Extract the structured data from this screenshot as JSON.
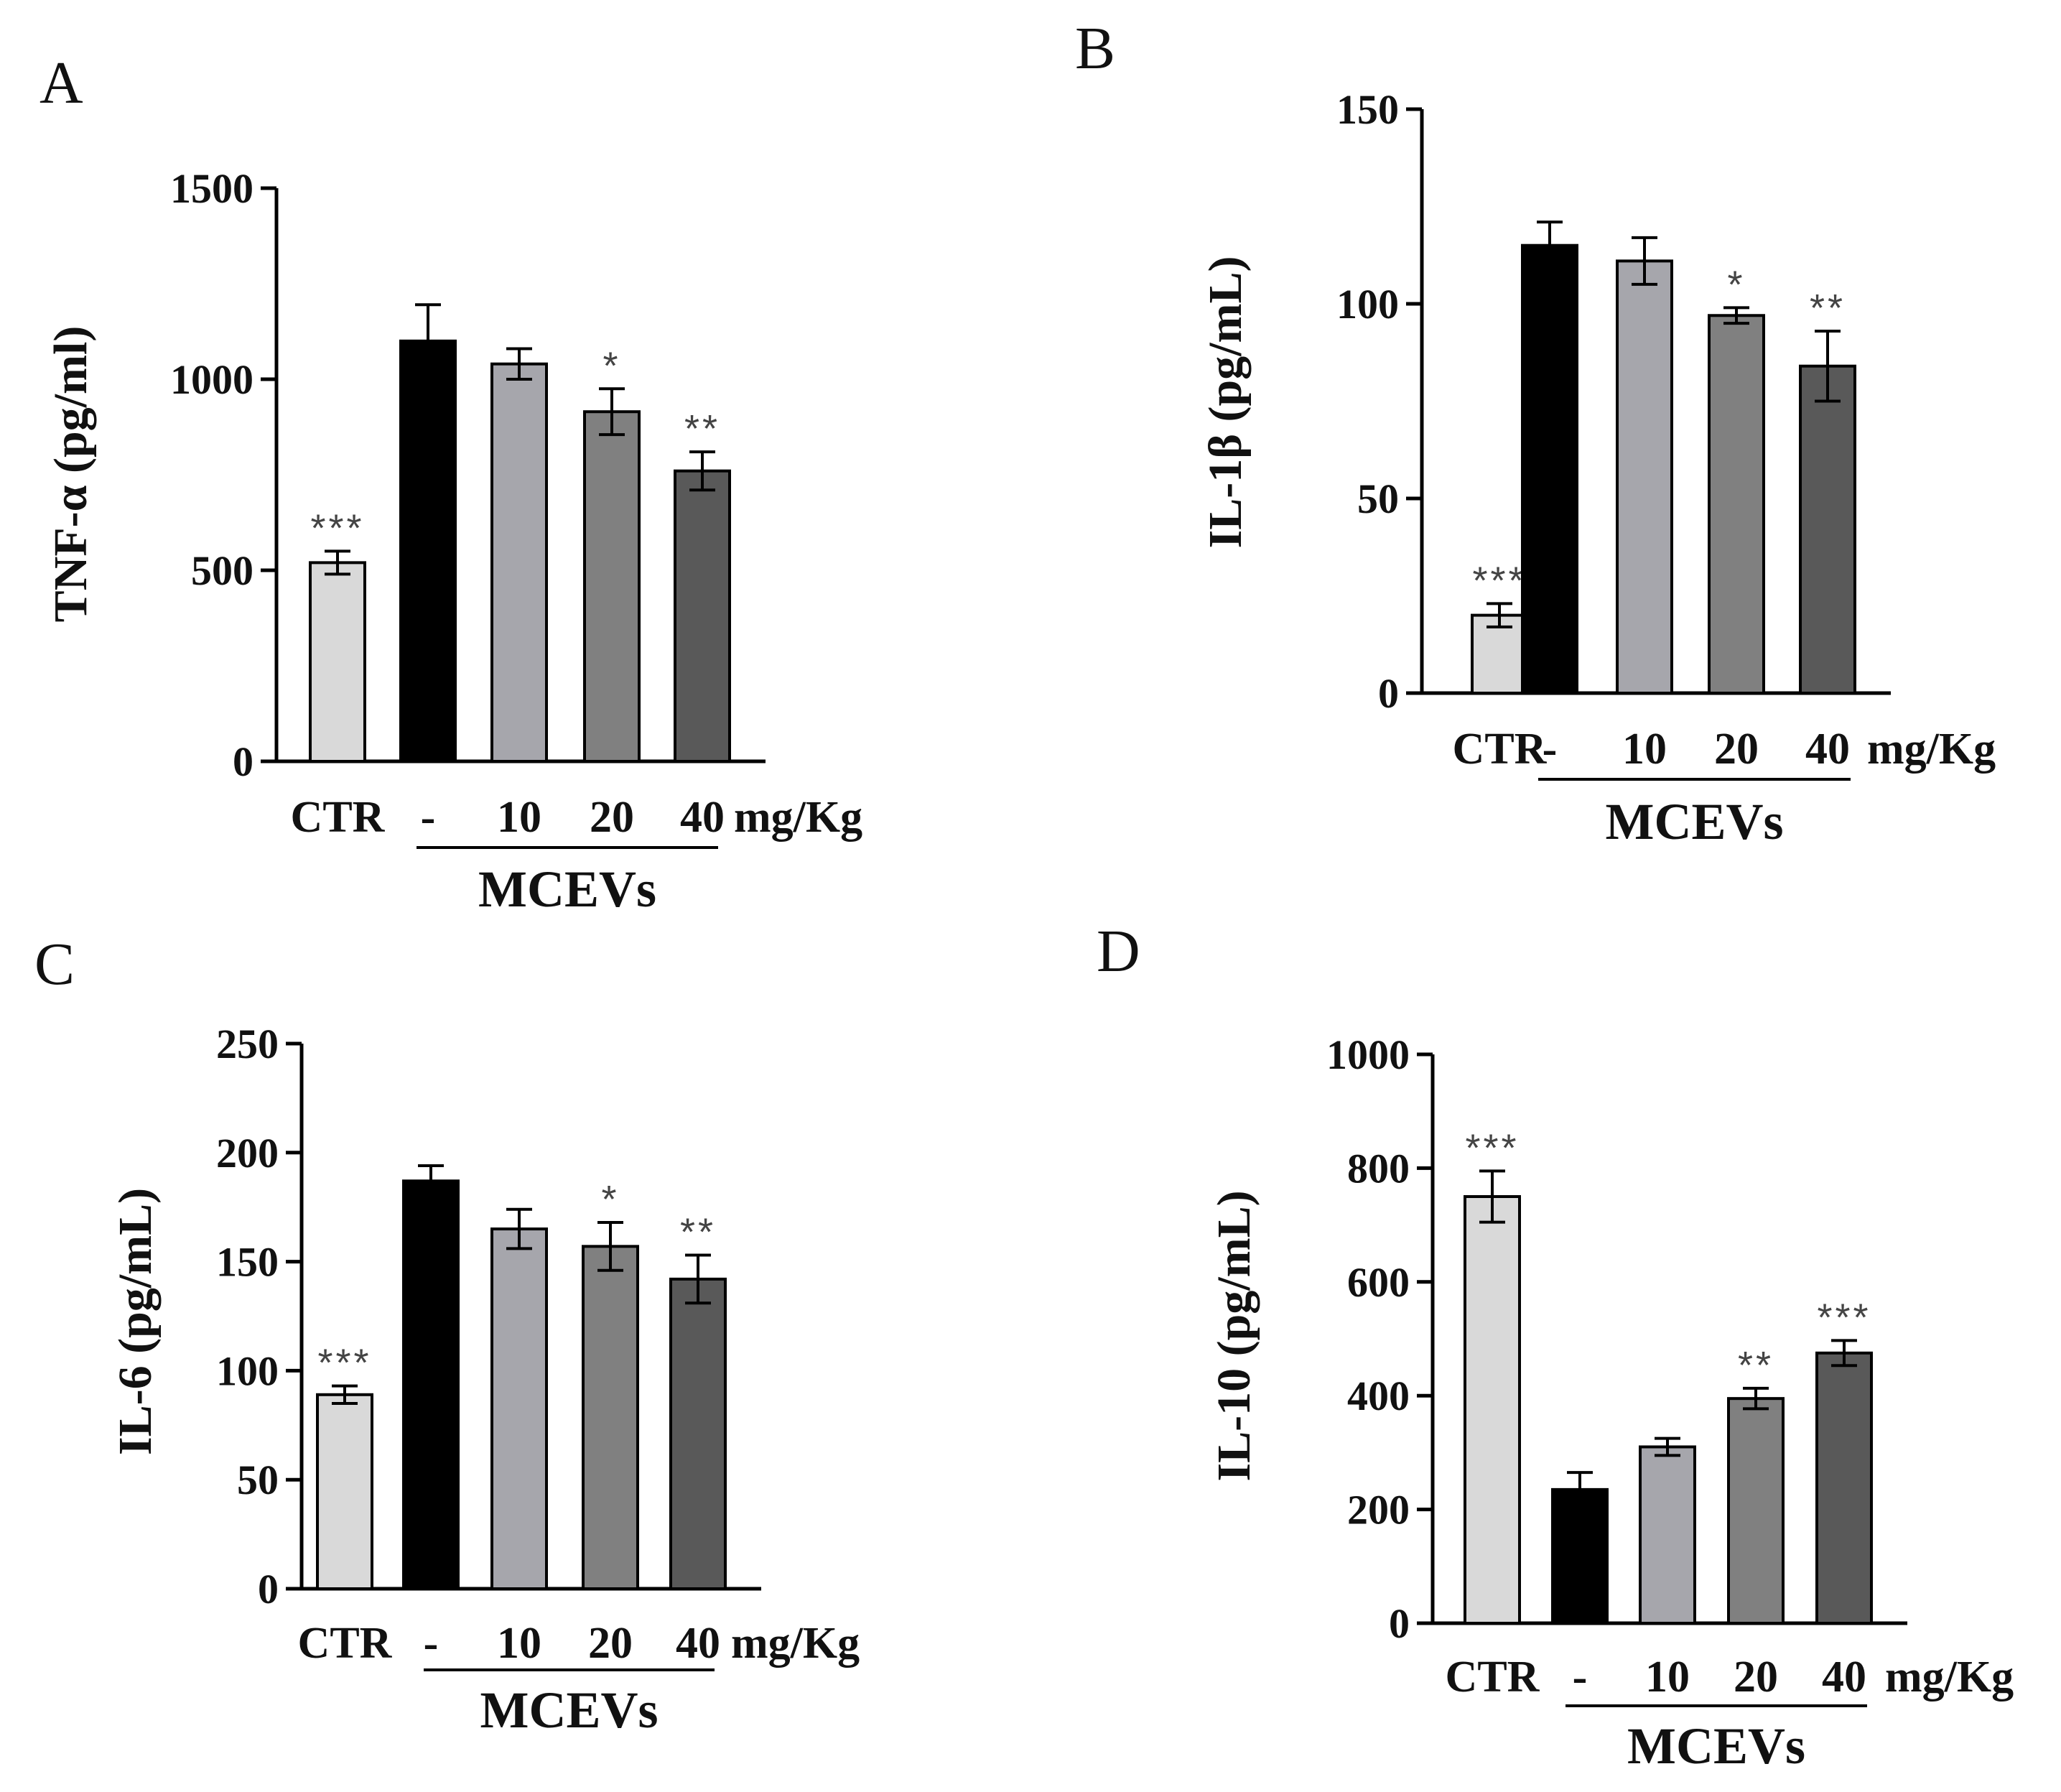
{
  "chart_data": [
    {
      "panel": "A",
      "type": "bar",
      "ylabel": "TNF-α (pg/ml)",
      "ylim": [
        0,
        1500
      ],
      "yticks": [
        0,
        500,
        1000,
        1500
      ],
      "categories": [
        "CTR",
        "-",
        "10",
        "20",
        "40"
      ],
      "unit": "mg/Kg",
      "group_label": "MCEVs",
      "values": [
        520,
        1100,
        1040,
        915,
        760
      ],
      "errors": [
        30,
        95,
        40,
        60,
        50
      ],
      "significance": [
        "***",
        "",
        "",
        "*",
        "**"
      ],
      "colors": [
        "#d9d9d9",
        "#000000",
        "#a6a6ac",
        "#808080",
        "#595959"
      ]
    },
    {
      "panel": "B",
      "type": "bar",
      "ylabel": "IL-1β (pg/mL)",
      "ylim": [
        0,
        150
      ],
      "yticks": [
        0,
        50,
        100,
        150
      ],
      "categories": [
        "CTR",
        "-",
        "10",
        "20",
        "40"
      ],
      "unit": "mg/Kg",
      "group_label": "MCEVs",
      "values": [
        20,
        115,
        111,
        97,
        84
      ],
      "errors": [
        3,
        6,
        6,
        2,
        9
      ],
      "significance": [
        "***",
        "",
        "",
        "*",
        "**"
      ],
      "colors": [
        "#d9d9d9",
        "#000000",
        "#a6a6ac",
        "#808080",
        "#595959"
      ]
    },
    {
      "panel": "C",
      "type": "bar",
      "ylabel": "IL-6 (pg/mL)",
      "ylim": [
        0,
        250
      ],
      "yticks": [
        0,
        50,
        100,
        150,
        200,
        250
      ],
      "categories": [
        "CTR",
        "-",
        "10",
        "20",
        "40"
      ],
      "unit": "mg/Kg",
      "group_label": "MCEVs",
      "values": [
        89,
        187,
        165,
        157,
        142
      ],
      "errors": [
        4,
        7,
        9,
        11,
        11
      ],
      "significance": [
        "***",
        "",
        "",
        "*",
        "**"
      ],
      "colors": [
        "#d9d9d9",
        "#000000",
        "#a6a6ac",
        "#808080",
        "#595959"
      ]
    },
    {
      "panel": "D",
      "type": "bar",
      "ylabel": "IL-10 (pg/mL)",
      "ylim": [
        0,
        1000
      ],
      "yticks": [
        0,
        200,
        400,
        600,
        800,
        1000
      ],
      "categories": [
        "CTR",
        "-",
        "10",
        "20",
        "40"
      ],
      "unit": "mg/Kg",
      "group_label": "MCEVs",
      "values": [
        750,
        235,
        310,
        395,
        475
      ],
      "errors": [
        45,
        30,
        15,
        18,
        22
      ],
      "significance": [
        "***",
        "",
        "",
        "**",
        "***"
      ],
      "colors": [
        "#d9d9d9",
        "#000000",
        "#a6a6ac",
        "#808080",
        "#595959"
      ]
    }
  ]
}
